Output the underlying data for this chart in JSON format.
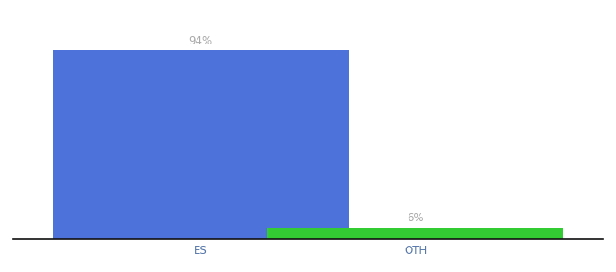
{
  "categories": [
    "ES",
    "OTH"
  ],
  "values": [
    94,
    6
  ],
  "bar_colors": [
    "#4d72d9",
    "#33cc33"
  ],
  "labels": [
    "94%",
    "6%"
  ],
  "background_color": "#ffffff",
  "text_color": "#aaaaaa",
  "label_fontsize": 8.5,
  "tick_fontsize": 8.5,
  "tick_color": "#5577aa",
  "bar_width": 0.55,
  "x_positions": [
    0.35,
    0.75
  ],
  "xlim": [
    0.0,
    1.1
  ],
  "ylim": [
    0,
    108
  ],
  "spine_color": "#111111"
}
